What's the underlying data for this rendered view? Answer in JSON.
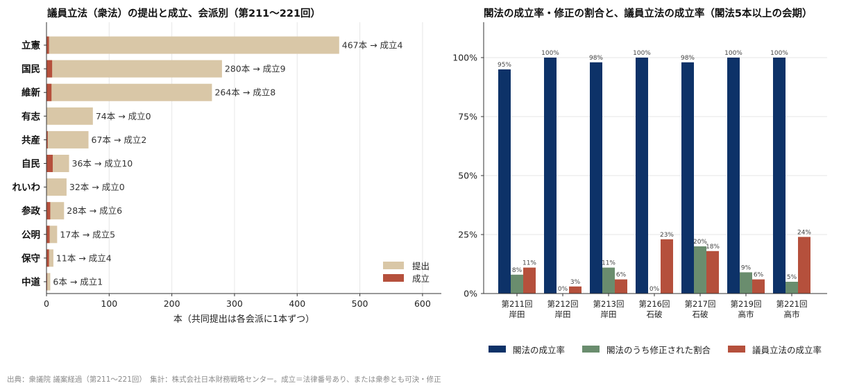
{
  "left_chart": {
    "title": "議員立法（衆法）の提出と成立、会派別（第211〜221回）",
    "xlabel": "本（共同提出は各会派に1本ずつ）",
    "legend": [
      "提出",
      "成立"
    ],
    "colors": {
      "submitted": "#d9c7a7",
      "passed": "#b5503c"
    },
    "bar_labels": [
      "467本 → 成立4",
      "280本 → 成立9",
      "264本 → 成立8",
      "74本 → 成立0",
      "67本 → 成立2",
      "36本 → 成立10",
      "32本 → 成立0",
      "28本 → 成立6",
      "17本 → 成立5",
      "11本 → 成立4",
      "6本 → 成立1"
    ]
  },
  "right_chart": {
    "title": "閣法の成立率・修正の割合と、議員立法の成立率（閣法5本以上の会期）",
    "legend": [
      "閣法の成立率",
      "閣法のうち修正された割合",
      "議員立法の成立率"
    ],
    "colors": [
      "#0d3268",
      "#6a8d6e",
      "#b5503c"
    ],
    "value_labels": [
      [
        "95%",
        "100%",
        "98%",
        "100%",
        "98%",
        "100%",
        "100%"
      ],
      [
        "8%",
        "0%",
        "11%",
        "0%",
        "20%",
        "9%",
        "5%"
      ],
      [
        "11%",
        "3%",
        "6%",
        "23%",
        "18%",
        "6%",
        "24%"
      ]
    ]
  },
  "footnote": "出典：衆議院 議案経過（第211〜221回）　集計：株式会社日本財務戦略センター。成立＝法律番号あり、または衆参とも可決・修正",
  "chart_data": [
    {
      "type": "bar",
      "orientation": "horizontal",
      "title": "議員立法（衆法）の提出と成立、会派別（第211〜221回）",
      "categories": [
        "立憲",
        "国民",
        "維新",
        "有志",
        "共産",
        "自民",
        "れいわ",
        "参政",
        "公明",
        "保守",
        "中道"
      ],
      "series": [
        {
          "name": "提出",
          "values": [
            467,
            280,
            264,
            74,
            67,
            36,
            32,
            28,
            17,
            11,
            6
          ]
        },
        {
          "name": "成立",
          "values": [
            4,
            9,
            8,
            0,
            2,
            10,
            0,
            6,
            5,
            4,
            1
          ]
        }
      ],
      "xlabel": "本（共同提出は各会派に1本ずつ）",
      "ylabel": "",
      "xlim": [
        0,
        630
      ],
      "xticks": [
        0,
        100,
        200,
        300,
        400,
        500,
        600
      ],
      "grid": "vertical",
      "legend": "bottom-right"
    },
    {
      "type": "bar",
      "orientation": "vertical",
      "title": "閣法の成立率・修正の割合と、議員立法の成立率（閣法5本以上の会期）",
      "categories": [
        "第211回\n岸田",
        "第212回\n岸田",
        "第213回\n岸田",
        "第216回\n石破",
        "第217回\n石破",
        "第219回\n高市",
        "第221回\n高市"
      ],
      "series": [
        {
          "name": "閣法の成立率",
          "values": [
            95,
            100,
            98,
            100,
            98,
            100,
            100
          ]
        },
        {
          "name": "閣法のうち修正された割合",
          "values": [
            8,
            0,
            11,
            0,
            20,
            9,
            5
          ]
        },
        {
          "name": "議員立法の成立率",
          "values": [
            11,
            3,
            6,
            23,
            18,
            6,
            24
          ]
        }
      ],
      "xlabel": "",
      "ylabel": "",
      "ylim": [
        0,
        115
      ],
      "yticks": [
        "0%",
        "25%",
        "50%",
        "75%",
        "100%"
      ],
      "grid": "horizontal",
      "legend": "bottom"
    }
  ]
}
